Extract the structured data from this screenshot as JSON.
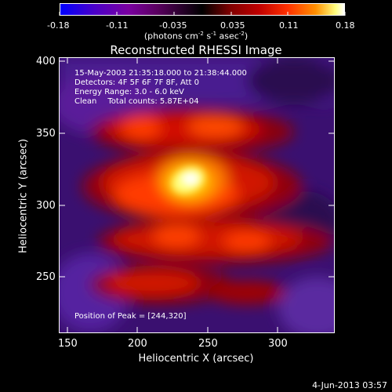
{
  "colorbar": {
    "ticks": [
      "-0.18",
      "-0.11",
      "-0.035",
      "0.035",
      "0.11",
      "0.18"
    ],
    "unit_prefix": "(photons cm",
    "unit_exp1": "-2",
    "unit_mid1": " s",
    "unit_exp2": "-1",
    "unit_mid2": " asec",
    "unit_exp3": "-2",
    "unit_suffix": ")"
  },
  "plot": {
    "title": "Reconstructed RHESSI Image",
    "xlabel": "Heliocentric X (arcsec)",
    "ylabel": "Heliocentric Y (arcsec)",
    "xticks": [
      "150",
      "200",
      "250",
      "300"
    ],
    "yticks": [
      "400",
      "350",
      "300",
      "250"
    ]
  },
  "info": {
    "time_range": "15-May-2003 21:35:18.000 to 21:38:44.000",
    "detectors": "Detectors: 4F 5F 6F 7F 8F, Att 0",
    "energy": "Energy Range: 3.0 - 6.0 keV",
    "algorithm": "Clean",
    "counts": "Total counts: 5.87E+04",
    "peak": "Position of Peak = [244,320]"
  },
  "footer": {
    "date": "4-Jun-2013 03:57"
  }
}
